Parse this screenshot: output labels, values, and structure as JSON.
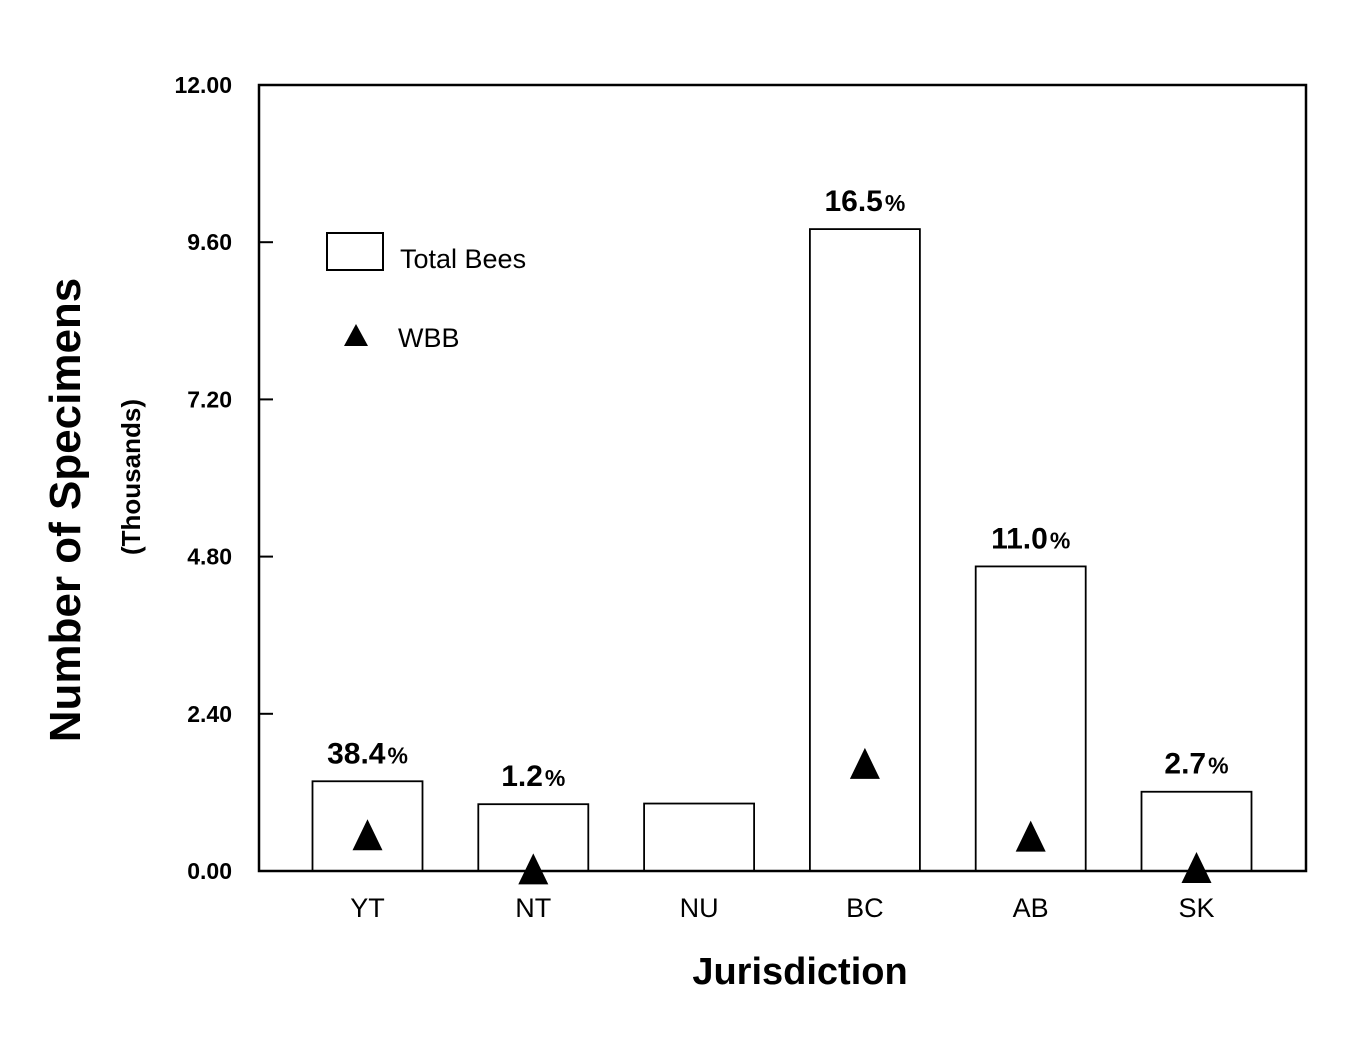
{
  "chart_data": {
    "type": "bar",
    "title": "",
    "xlabel": "Jurisdiction",
    "ylabel": "Number of Specimens",
    "ylabel_sub": "(Thousands)",
    "categories": [
      "YT",
      "NT",
      "NU",
      "BC",
      "AB",
      "SK"
    ],
    "series": [
      {
        "name": "Total Bees",
        "type": "bar",
        "values": [
          1.37,
          1.02,
          1.03,
          9.8,
          4.65,
          1.21
        ]
      },
      {
        "name": "WBB",
        "type": "point-triangle",
        "values": [
          0.53,
          0.01,
          null,
          1.62,
          0.51,
          0.03
        ]
      }
    ],
    "percent_labels": [
      "38.4%",
      "1.2%",
      null,
      "16.5%",
      "11.0%",
      "2.7%"
    ],
    "ylim": [
      0,
      12
    ],
    "yticks": [
      "0.00",
      "2.40",
      "4.80",
      "7.20",
      "9.60",
      "12.00"
    ],
    "ytick_values": [
      0,
      2.4,
      4.8,
      7.2,
      9.6,
      12
    ],
    "legend": [
      {
        "label": "Total Bees",
        "marker": "open-rectangle"
      },
      {
        "label": "WBB",
        "marker": "filled-triangle"
      }
    ],
    "legend_position": "upper-left-inside",
    "grid": false,
    "colors": {
      "background": "#ffffff",
      "bar_fill": "#ffffff",
      "stroke": "#000000",
      "marker": "#000000",
      "text": "#000000"
    }
  }
}
